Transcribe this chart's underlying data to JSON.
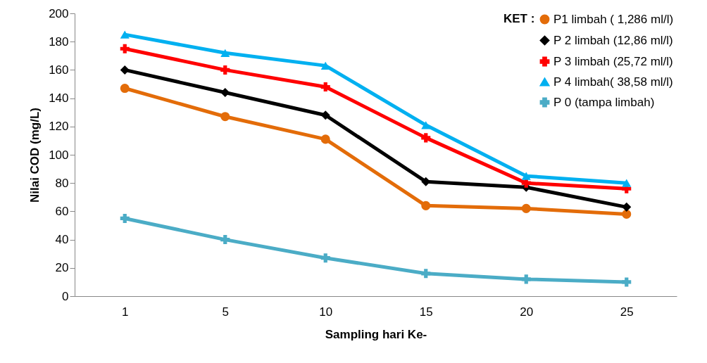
{
  "chart_data": {
    "type": "line",
    "xlabel": "Sampling hari Ke-",
    "ylabel": "Nilai COD (mg/L)",
    "legend_title": "KET :",
    "legend": "top right",
    "grid": false,
    "categories": [
      "1",
      "5",
      "10",
      "15",
      "20",
      "25"
    ],
    "ylim": [
      0,
      200
    ],
    "yticks": [
      0,
      20,
      40,
      60,
      80,
      100,
      120,
      140,
      160,
      180,
      200
    ],
    "series": [
      {
        "name": "P1  limbah ( 1,286 ml/l)",
        "color": "#e36c09",
        "marker": "circle",
        "values": [
          147,
          127,
          111,
          64,
          62,
          58
        ]
      },
      {
        "name": "P 2 limbah (12,86 ml/l)",
        "color": "#000000",
        "marker": "diamond",
        "values": [
          160,
          144,
          128,
          81,
          77,
          63
        ]
      },
      {
        "name": "P 3 limbah (25,72 ml/l)",
        "color": "#ff0000",
        "marker": "cross",
        "values": [
          175,
          160,
          148,
          112,
          80,
          76
        ]
      },
      {
        "name": "P 4 limbah( 38,58 ml/l)",
        "color": "#00b0f0",
        "marker": "triangle",
        "values": [
          185,
          172,
          163,
          121,
          85,
          80
        ]
      },
      {
        "name": "P 0 (tampa limbah)",
        "color": "#4bacc6",
        "marker": "cross",
        "values": [
          55,
          40,
          27,
          16,
          12,
          10
        ]
      }
    ]
  }
}
